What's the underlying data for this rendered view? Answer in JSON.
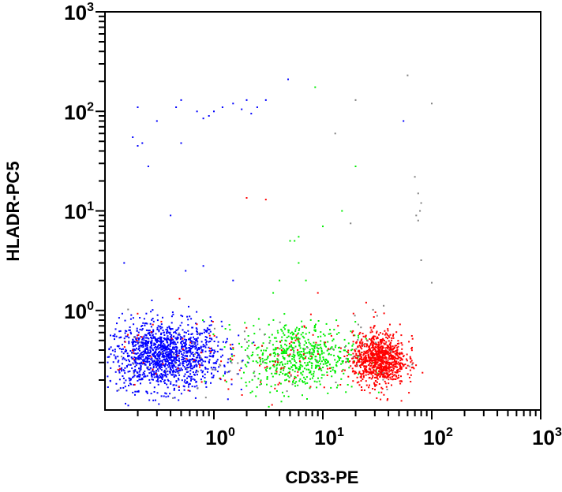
{
  "chart_data": {
    "type": "scatter",
    "title": "",
    "xlabel": "CD33-PE",
    "ylabel": "HLADR-PC5",
    "xscale": "log",
    "yscale": "log",
    "xlim": [
      0.1,
      1000
    ],
    "ylim": [
      0.1,
      1000
    ],
    "grid": false,
    "legend": "none",
    "x_ticks": [
      {
        "base": "10",
        "exp": "0",
        "value": 1
      },
      {
        "base": "10",
        "exp": "1",
        "value": 10
      },
      {
        "base": "10",
        "exp": "2",
        "value": 100
      },
      {
        "base": "10",
        "exp": "3",
        "value": 1000
      }
    ],
    "y_ticks": [
      {
        "base": "10",
        "exp": "0",
        "value": 1
      },
      {
        "base": "10",
        "exp": "1",
        "value": 10
      },
      {
        "base": "10",
        "exp": "2",
        "value": 100
      },
      {
        "base": "10",
        "exp": "3",
        "value": 1000
      }
    ],
    "colors": {
      "blue": "#0000ff",
      "green": "#00ee00",
      "red": "#ff0000",
      "gray": "#808080"
    },
    "populations": [
      {
        "color": "blue",
        "center_x": 0.35,
        "center_y": 0.35,
        "count": 1400
      },
      {
        "color": "green",
        "center_x": 6,
        "center_y": 0.35,
        "count": 600
      },
      {
        "color": "red",
        "center_x": 33,
        "center_y": 0.32,
        "count": 900
      },
      {
        "color": "red",
        "center_x": 3,
        "center_y": 0.35,
        "count": 150
      },
      {
        "color": "gray",
        "center_x": 3,
        "center_y": 0.35,
        "count": 90
      }
    ],
    "outliers": [
      {
        "color": "blue",
        "points": [
          [
            0.2,
            110
          ],
          [
            0.18,
            55
          ],
          [
            0.2,
            45
          ],
          [
            0.22,
            48
          ],
          [
            0.25,
            28
          ],
          [
            0.3,
            80
          ],
          [
            0.5,
            130
          ],
          [
            0.45,
            110
          ],
          [
            0.5,
            48
          ],
          [
            0.7,
            100
          ],
          [
            0.8,
            85
          ],
          [
            0.9,
            90
          ],
          [
            1.0,
            100
          ],
          [
            1.2,
            110
          ],
          [
            1.5,
            120
          ],
          [
            1.8,
            105
          ],
          [
            2,
            130
          ],
          [
            2.2,
            95
          ],
          [
            2.5,
            110
          ],
          [
            3,
            130
          ],
          [
            4.8,
            210
          ],
          [
            0.4,
            9
          ],
          [
            0.15,
            3
          ],
          [
            0.55,
            2.5
          ],
          [
            0.8,
            2.8
          ],
          [
            1.5,
            2
          ],
          [
            55,
            80
          ]
        ]
      },
      {
        "color": "green",
        "points": [
          [
            8.5,
            175
          ],
          [
            20,
            28
          ],
          [
            15,
            10
          ],
          [
            5.5,
            5
          ],
          [
            6,
            5.5
          ],
          [
            5,
            5
          ],
          [
            6,
            3
          ],
          [
            4,
            2
          ],
          [
            3.5,
            1.5
          ],
          [
            10,
            7
          ],
          [
            7,
            2
          ]
        ]
      },
      {
        "color": "red",
        "points": [
          [
            2,
            13.5
          ],
          [
            3,
            13
          ],
          [
            9,
            1.5
          ],
          [
            25,
            1.2
          ]
        ]
      },
      {
        "color": "gray",
        "points": [
          [
            20,
            130
          ],
          [
            13,
            60
          ],
          [
            60,
            230
          ],
          [
            100,
            120
          ],
          [
            18,
            7.5
          ],
          [
            70,
            22
          ],
          [
            75,
            15
          ],
          [
            80,
            12
          ],
          [
            78,
            10
          ],
          [
            75,
            8
          ],
          [
            72,
            9
          ],
          [
            80,
            3.2
          ],
          [
            100,
            1.9
          ]
        ]
      }
    ]
  }
}
